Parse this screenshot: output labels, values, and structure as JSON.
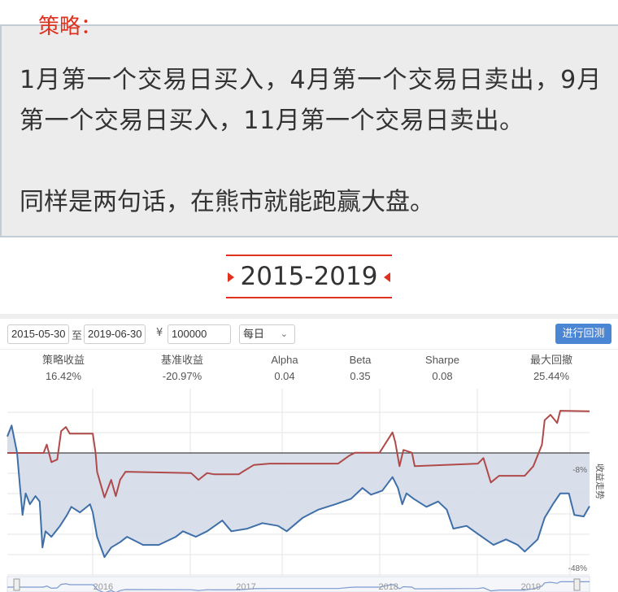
{
  "article": {
    "strategy_label": "策略：",
    "paragraph1": "1月第一个交易日买入，4月第一个交易日卖出，9月第一个交易日买入，11月第一个交易日卖出。",
    "paragraph2": "同样是两句话，在熊市就能跑赢大盘。",
    "section_heading": "2015-2019",
    "accent_color": "#e0301e"
  },
  "controls": {
    "start_date": "2015-05-30",
    "to_label": "至",
    "end_date": "2019-06-30",
    "currency_symbol": "¥",
    "capital": "100000",
    "frequency": "每日",
    "run_button": "进行回测"
  },
  "stats": [
    {
      "label": "策略收益",
      "value": "16.42%"
    },
    {
      "label": "基准收益",
      "value": "-20.97%"
    },
    {
      "label": "Alpha",
      "value": "0.04"
    },
    {
      "label": "Beta",
      "value": "0.35"
    },
    {
      "label": "Sharpe",
      "value": "0.08"
    },
    {
      "label": "最大回撤",
      "value": "25.44%"
    }
  ],
  "chart_data": {
    "type": "line",
    "ylabel": "收益走势",
    "y_tick_labels": [
      "-8%",
      "-48%"
    ],
    "ylim": [
      -48,
      24
    ],
    "x_range": [
      "2015-05-30",
      "2019-06-30"
    ],
    "navigator_labels": [
      "2016",
      "2017",
      "2018",
      "2019"
    ],
    "grid": true,
    "series": [
      {
        "color": "#b04a4a",
        "points": [
          [
            "2015-05-30",
            0
          ],
          [
            "2015-08-31",
            0
          ],
          [
            "2015-09-08",
            3.3
          ],
          [
            "2015-09-20",
            -3.6
          ],
          [
            "2015-10-05",
            -2.6
          ],
          [
            "2015-10-15",
            8.6
          ],
          [
            "2015-10-27",
            10.2
          ],
          [
            "2015-11-06",
            7.6
          ],
          [
            "2016-01-04",
            7.6
          ],
          [
            "2016-01-11",
            0.1
          ],
          [
            "2016-01-15",
            -7.4
          ],
          [
            "2016-02-03",
            -17.5
          ],
          [
            "2016-02-20",
            -10.6
          ],
          [
            "2016-03-03",
            -17.0
          ],
          [
            "2016-03-14",
            -10.6
          ],
          [
            "2016-03-28",
            -7.4
          ],
          [
            "2016-09-12",
            -7.9
          ],
          [
            "2016-10-01",
            -10.6
          ],
          [
            "2016-10-23",
            -7.9
          ],
          [
            "2016-11-10",
            -8.4
          ],
          [
            "2017-01-12",
            -8.4
          ],
          [
            "2017-01-22",
            -7.4
          ],
          [
            "2017-02-20",
            -4.7
          ],
          [
            "2017-04-01",
            -4.2
          ],
          [
            "2017-09-24",
            -4.2
          ],
          [
            "2017-10-23",
            -1.0
          ],
          [
            "2017-11-06",
            0.1
          ],
          [
            "2018-01-08",
            0.1
          ],
          [
            "2018-02-10",
            8.1
          ],
          [
            "2018-02-17",
            4.4
          ],
          [
            "2018-02-28",
            -5.2
          ],
          [
            "2018-03-10",
            1.2
          ],
          [
            "2018-04-01",
            0.1
          ],
          [
            "2018-04-08",
            -5.2
          ],
          [
            "2018-09-17",
            -4.2
          ],
          [
            "2018-10-01",
            -2.0
          ],
          [
            "2018-10-20",
            -11.6
          ],
          [
            "2018-11-10",
            -9.0
          ],
          [
            "2019-01-15",
            -9.0
          ],
          [
            "2019-02-06",
            -5.2
          ],
          [
            "2019-02-28",
            3.3
          ],
          [
            "2019-03-07",
            12.9
          ],
          [
            "2019-03-22",
            15.0
          ],
          [
            "2019-04-08",
            11.8
          ],
          [
            "2019-04-16",
            16.6
          ],
          [
            "2019-06-30",
            16.42
          ]
        ]
      },
      {
        "color": "#3f6fa8",
        "points": [
          [
            "2015-05-30",
            6.5
          ],
          [
            "2015-06-10",
            10.8
          ],
          [
            "2015-06-24",
            0.1
          ],
          [
            "2015-07-01",
            -12.6
          ],
          [
            "2015-07-08",
            -24.4
          ],
          [
            "2015-07-16",
            -15.9
          ],
          [
            "2015-07-27",
            -20.2
          ],
          [
            "2015-08-10",
            -17.0
          ],
          [
            "2015-08-21",
            -19.1
          ],
          [
            "2015-08-28",
            -37.2
          ],
          [
            "2015-09-05",
            -30.8
          ],
          [
            "2015-09-20",
            -33.0
          ],
          [
            "2015-10-12",
            -28.7
          ],
          [
            "2015-10-30",
            -24.4
          ],
          [
            "2015-11-10",
            -21.2
          ],
          [
            "2015-12-02",
            -23.4
          ],
          [
            "2015-12-28",
            -20.2
          ],
          [
            "2016-01-04",
            -23.4
          ],
          [
            "2016-01-15",
            -33.0
          ],
          [
            "2016-02-03",
            -41.0
          ],
          [
            "2016-02-20",
            -37.2
          ],
          [
            "2016-03-14",
            -35.1
          ],
          [
            "2016-04-01",
            -33.0
          ],
          [
            "2016-05-12",
            -36.2
          ],
          [
            "2016-06-21",
            -36.2
          ],
          [
            "2016-08-04",
            -33.0
          ],
          [
            "2016-08-22",
            -30.8
          ],
          [
            "2016-09-24",
            -33.0
          ],
          [
            "2016-10-23",
            -30.8
          ],
          [
            "2016-12-01",
            -26.6
          ],
          [
            "2016-12-24",
            -30.8
          ],
          [
            "2017-02-03",
            -29.8
          ],
          [
            "2017-03-14",
            -27.6
          ],
          [
            "2017-04-23",
            -28.7
          ],
          [
            "2017-05-15",
            -30.8
          ],
          [
            "2017-06-25",
            -25.5
          ],
          [
            "2017-08-04",
            -22.3
          ],
          [
            "2017-09-17",
            -20.2
          ],
          [
            "2017-10-27",
            -18.0
          ],
          [
            "2017-11-25",
            -13.8
          ],
          [
            "2017-12-17",
            -16.4
          ],
          [
            "2018-01-15",
            -14.8
          ],
          [
            "2018-02-10",
            -9.5
          ],
          [
            "2018-02-24",
            -13.8
          ],
          [
            "2018-03-07",
            -20.2
          ],
          [
            "2018-03-18",
            -15.9
          ],
          [
            "2018-04-05",
            -18.0
          ],
          [
            "2018-05-08",
            -21.2
          ],
          [
            "2018-06-07",
            -19.1
          ],
          [
            "2018-06-29",
            -22.3
          ],
          [
            "2018-07-16",
            -29.8
          ],
          [
            "2018-08-19",
            -28.7
          ],
          [
            "2018-09-17",
            -31.9
          ],
          [
            "2018-10-27",
            -36.2
          ],
          [
            "2018-11-28",
            -34.0
          ],
          [
            "2018-12-28",
            -36.2
          ],
          [
            "2019-01-15",
            -38.8
          ],
          [
            "2019-02-17",
            -34.0
          ],
          [
            "2019-03-07",
            -25.5
          ],
          [
            "2019-03-28",
            -20.2
          ],
          [
            "2019-04-16",
            -15.9
          ],
          [
            "2019-05-08",
            -15.9
          ],
          [
            "2019-05-22",
            -24.4
          ],
          [
            "2019-06-15",
            -25.0
          ],
          [
            "2019-06-30",
            -20.97
          ]
        ]
      }
    ]
  }
}
